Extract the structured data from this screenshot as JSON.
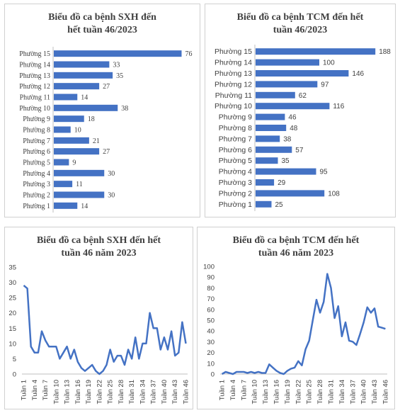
{
  "chart_data": [
    {
      "type": "bar",
      "orientation": "horizontal",
      "title": "Biểu đồ ca bệnh SXH đến hết tuần 46/2023",
      "categories": [
        "Phường 15",
        "Phường 14",
        "Phường 13",
        "Phường 12",
        "Phường 11",
        "Phường 10",
        "Phường 9",
        "Phường 8",
        "Phường 7",
        "Phường 6",
        "Phường 5",
        "Phường 4",
        "Phường 3",
        "Phường 2",
        "Phường 1"
      ],
      "values": [
        76,
        33,
        35,
        27,
        14,
        38,
        18,
        10,
        21,
        27,
        9,
        30,
        11,
        30,
        14
      ],
      "xlim": [
        0,
        80
      ],
      "data_labels": true,
      "grid": false,
      "bar_color": "#4472C4"
    },
    {
      "type": "bar",
      "orientation": "horizontal",
      "title": "Biểu đồ ca bệnh TCM đến hết tuần 46/2023",
      "categories": [
        "Phường 15",
        "Phường 14",
        "Phường 13",
        "Phường 12",
        "Phường 11",
        "Phường 10",
        "Phường 9",
        "Phường 8",
        "Phường 7",
        "Phường 6",
        "Phường 5",
        "Phường 4",
        "Phường 3",
        "Phường 2",
        "Phường 1"
      ],
      "values": [
        188,
        100,
        146,
        97,
        62,
        116,
        46,
        48,
        38,
        57,
        35,
        95,
        29,
        108,
        25
      ],
      "xlim": [
        0,
        200
      ],
      "data_labels": true,
      "grid": false,
      "bar_color": "#4472C4"
    },
    {
      "type": "line",
      "title": "Biểu đồ ca bệnh SXH đến hết tuần 46 năm 2023",
      "x": [
        "Tuần 1",
        "Tuần 2",
        "Tuần 3",
        "Tuần 4",
        "Tuần 5",
        "Tuần 6",
        "Tuần 7",
        "Tuần 8",
        "Tuần 9",
        "Tuần 10",
        "Tuần 11",
        "Tuần 12",
        "Tuần 13",
        "Tuần 14",
        "Tuần 15",
        "Tuần 16",
        "Tuần 17",
        "Tuần 18",
        "Tuần 19",
        "Tuần 20",
        "Tuần 21",
        "Tuần 22",
        "Tuần 23",
        "Tuần 24",
        "Tuần 25",
        "Tuần 26",
        "Tuần 27",
        "Tuần 28",
        "Tuần 29",
        "Tuần 30",
        "Tuần 31",
        "Tuần 32",
        "Tuần 33",
        "Tuần 34",
        "Tuần 35",
        "Tuần 36",
        "Tuần 37",
        "Tuần 38",
        "Tuần 39",
        "Tuần 40",
        "Tuần 41",
        "Tuần 42",
        "Tuần 43",
        "Tuần 44",
        "Tuần 45",
        "Tuần 46"
      ],
      "xtick_labels": [
        "Tuần 1",
        "Tuần 4",
        "Tuần 7",
        "Tuần 10",
        "Tuần 13",
        "Tuần 16",
        "Tuần 19",
        "Tuần 22",
        "Tuần 25",
        "Tuần 28",
        "Tuần 31",
        "Tuần 34",
        "Tuần 37",
        "Tuần 40",
        "Tuần 43",
        "Tuần 46"
      ],
      "values": [
        29,
        28,
        9,
        7,
        7,
        14,
        11,
        9,
        9,
        9,
        5,
        7,
        9,
        5,
        8,
        4,
        2,
        1,
        2,
        3,
        1,
        0,
        1,
        3,
        8,
        4,
        6,
        6,
        3,
        8,
        5,
        12,
        5,
        10,
        10,
        20,
        15,
        15,
        8,
        12,
        8,
        14,
        6,
        7,
        17,
        10
      ],
      "yticks": [
        0,
        5,
        10,
        15,
        20,
        25,
        30,
        35
      ],
      "ylim": [
        0,
        35
      ],
      "grid": false,
      "line_color": "#4472C4"
    },
    {
      "type": "line",
      "title": "Biểu đồ ca bệnh TCM đến hết tuần 46 năm 2023",
      "x": [
        "Tuần 1",
        "Tuần 2",
        "Tuần 3",
        "Tuần 4",
        "Tuần 5",
        "Tuần 6",
        "Tuần 7",
        "Tuần 8",
        "Tuần 9",
        "Tuần 10",
        "Tuần 11",
        "Tuần 12",
        "Tuần 13",
        "Tuần 14",
        "Tuần 15",
        "Tuần 16",
        "Tuần 17",
        "Tuần 18",
        "Tuần 19",
        "Tuần 20",
        "Tuần 21",
        "Tuần 22",
        "Tuần 23",
        "Tuần 24",
        "Tuần 25",
        "Tuần 26",
        "Tuần 27",
        "Tuần 28",
        "Tuần 29",
        "Tuần 30",
        "Tuần 31",
        "Tuần 32",
        "Tuần 33",
        "Tuần 34",
        "Tuần 35",
        "Tuần 36",
        "Tuần 37",
        "Tuần 38",
        "Tuần 39",
        "Tuần 40",
        "Tuần 41",
        "Tuần 42",
        "Tuần 43",
        "Tuần 44",
        "Tuần 45",
        "Tuần 46"
      ],
      "xtick_labels": [
        "Tuần 1",
        "Tuần 4",
        "Tuần 7",
        "Tuần 10",
        "Tuần 13",
        "Tuần 16",
        "Tuần 19",
        "Tuần 22",
        "Tuần 25",
        "Tuần 28",
        "Tuần 31",
        "Tuần 34",
        "Tuần 37",
        "Tuần 40",
        "Tuần 43",
        "Tuần 46"
      ],
      "values": [
        0,
        2,
        1,
        0,
        2,
        2,
        2,
        1,
        2,
        1,
        2,
        1,
        1,
        9,
        6,
        3,
        1,
        0,
        3,
        5,
        6,
        12,
        8,
        23,
        31,
        50,
        69,
        57,
        67,
        93,
        80,
        52,
        63,
        35,
        48,
        31,
        30,
        27,
        37,
        48,
        62,
        57,
        61,
        44,
        43,
        42
      ],
      "yticks": [
        0,
        10,
        20,
        30,
        40,
        50,
        60,
        70,
        80,
        90,
        100
      ],
      "ylim": [
        0,
        100
      ],
      "grid": false,
      "line_color": "#4472C4"
    }
  ]
}
